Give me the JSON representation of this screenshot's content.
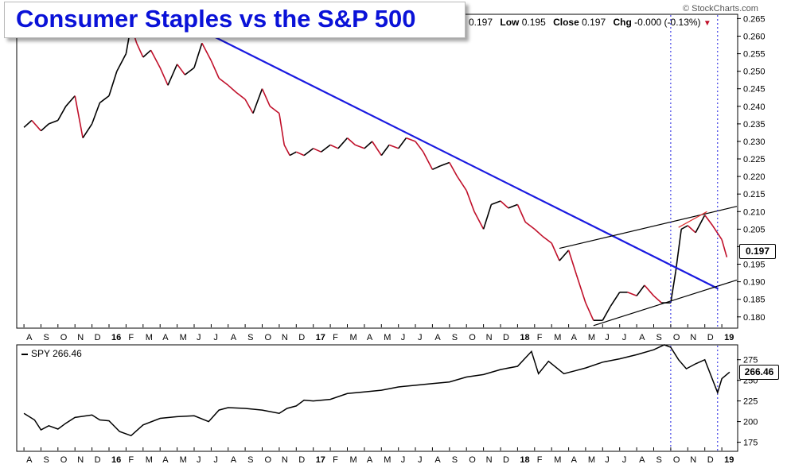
{
  "title": "Consumer Staples vs the S&P 500",
  "watermark": "© StockCharts.com",
  "header": {
    "open_value": "0.197",
    "low_label": "Low",
    "low_value": "0.195",
    "close_label": "Close",
    "close_value": "0.197",
    "chg_label": "Chg",
    "chg_value": "-0.000 (-0.13%)"
  },
  "chart_data": [
    {
      "type": "line",
      "panel": "ratio",
      "title": "Consumer Staples vs the S&P 500",
      "last_value_label": "0.197",
      "ylim": [
        0.177,
        0.266
      ],
      "y_ticks": [
        "0.265",
        "0.260",
        "0.255",
        "0.250",
        "0.245",
        "0.240",
        "0.235",
        "0.230",
        "0.225",
        "0.220",
        "0.215",
        "0.210",
        "0.205",
        "0.200",
        "0.195",
        "0.190",
        "0.185",
        "0.180"
      ],
      "x_tick_labels": [
        "A",
        "S",
        "O",
        "N",
        "D",
        "16",
        "F",
        "M",
        "A",
        "M",
        "J",
        "J",
        "A",
        "S",
        "O",
        "N",
        "D",
        "17",
        "F",
        "M",
        "A",
        "M",
        "J",
        "J",
        "A",
        "S",
        "O",
        "N",
        "D",
        "18",
        "F",
        "M",
        "A",
        "M",
        "J",
        "J",
        "A",
        "S",
        "O",
        "N",
        "D",
        "19"
      ],
      "x_range": [
        "2015-08",
        "2019-01"
      ],
      "line_colors": {
        "up": "#000000",
        "down": "#c0102a"
      },
      "series": [
        {
          "x": [
            "2015-08-01",
            "2015-08-15",
            "2015-09-01",
            "2015-09-15",
            "2015-10-01",
            "2015-10-15",
            "2015-11-01",
            "2015-11-15",
            "2015-12-01",
            "2015-12-15",
            "2016-01-01",
            "2016-01-15",
            "2016-02-01",
            "2016-02-10",
            "2016-02-20",
            "2016-03-01",
            "2016-03-15",
            "2016-04-01",
            "2016-04-15",
            "2016-05-01",
            "2016-05-15",
            "2016-06-01",
            "2016-06-15",
            "2016-07-01",
            "2016-07-15",
            "2016-08-01",
            "2016-08-15",
            "2016-09-01",
            "2016-09-15",
            "2016-10-01",
            "2016-10-15",
            "2016-11-01",
            "2016-11-10",
            "2016-11-20",
            "2016-12-01",
            "2016-12-15",
            "2017-01-01",
            "2017-01-15",
            "2017-02-01",
            "2017-02-15",
            "2017-03-01",
            "2017-03-15",
            "2017-04-01",
            "2017-04-15",
            "2017-05-01",
            "2017-05-15",
            "2017-06-01",
            "2017-06-15",
            "2017-07-01",
            "2017-07-15",
            "2017-08-01",
            "2017-08-15",
            "2017-09-01",
            "2017-09-15",
            "2017-10-01",
            "2017-10-15",
            "2017-11-01",
            "2017-11-15",
            "2017-12-01",
            "2017-12-15",
            "2018-01-01",
            "2018-01-15",
            "2018-02-01",
            "2018-02-15",
            "2018-03-01",
            "2018-03-15",
            "2018-04-01",
            "2018-04-15",
            "2018-05-01",
            "2018-05-15",
            "2018-06-01",
            "2018-06-15",
            "2018-07-01",
            "2018-07-15",
            "2018-08-01",
            "2018-08-15",
            "2018-09-01",
            "2018-09-15",
            "2018-10-01",
            "2018-10-10",
            "2018-10-20",
            "2018-11-01",
            "2018-11-15",
            "2018-12-01",
            "2018-12-15",
            "2019-01-01",
            "2019-01-10"
          ],
          "y": [
            0.234,
            0.236,
            0.233,
            0.235,
            0.236,
            0.24,
            0.243,
            0.231,
            0.235,
            0.241,
            0.243,
            0.25,
            0.255,
            0.263,
            0.258,
            0.254,
            0.256,
            0.251,
            0.246,
            0.252,
            0.249,
            0.251,
            0.258,
            0.253,
            0.248,
            0.246,
            0.244,
            0.242,
            0.238,
            0.245,
            0.24,
            0.238,
            0.229,
            0.226,
            0.227,
            0.226,
            0.228,
            0.227,
            0.229,
            0.228,
            0.231,
            0.229,
            0.228,
            0.23,
            0.226,
            0.229,
            0.228,
            0.231,
            0.23,
            0.227,
            0.222,
            0.223,
            0.224,
            0.22,
            0.216,
            0.21,
            0.205,
            0.212,
            0.213,
            0.211,
            0.212,
            0.207,
            0.205,
            0.203,
            0.201,
            0.196,
            0.199,
            0.192,
            0.184,
            0.179,
            0.179,
            0.183,
            0.187,
            0.187,
            0.186,
            0.189,
            0.186,
            0.184,
            0.184,
            0.193,
            0.205,
            0.206,
            0.204,
            0.209,
            0.206,
            0.202,
            0.197
          ]
        }
      ],
      "trendlines": [
        {
          "name": "downtrend",
          "color": "#1a1ae0",
          "points": [
            [
              "2016-05-15",
              0.264
            ],
            [
              "2018-12-25",
              0.188
            ]
          ]
        },
        {
          "name": "channel-upper",
          "color": "#000000",
          "points": [
            [
              "2018-03-15",
              0.1995
            ],
            [
              "2019-01-28",
              0.2115
            ]
          ]
        },
        {
          "name": "channel-lower",
          "color": "#000000",
          "points": [
            [
              "2018-05-15",
              0.1775
            ],
            [
              "2019-01-28",
              0.1905
            ]
          ]
        },
        {
          "name": "top-segment",
          "color": "#e03030",
          "points": [
            [
              "2018-10-15",
              0.2055
            ],
            [
              "2018-12-05",
              0.21
            ]
          ]
        }
      ],
      "vertical_markers": [
        "2018-10-01",
        "2018-12-24"
      ],
      "grid": false,
      "legend": "none"
    },
    {
      "type": "line",
      "panel": "spy",
      "legend_label": "SPY 266.46",
      "last_value_label": "266.46",
      "ylim": [
        165,
        292
      ],
      "y_ticks": [
        "275",
        "250",
        "225",
        "200",
        "175"
      ],
      "x_tick_labels": [
        "A",
        "S",
        "O",
        "N",
        "D",
        "16",
        "F",
        "M",
        "A",
        "M",
        "J",
        "J",
        "A",
        "S",
        "O",
        "N",
        "D",
        "17",
        "F",
        "M",
        "A",
        "M",
        "J",
        "J",
        "A",
        "S",
        "O",
        "N",
        "D",
        "18",
        "F",
        "M",
        "A",
        "M",
        "J",
        "J",
        "A",
        "S",
        "O",
        "N",
        "D",
        "19"
      ],
      "series": [
        {
          "name": "SPY",
          "x": [
            "2015-08-01",
            "2015-08-20",
            "2015-09-01",
            "2015-09-15",
            "2015-10-01",
            "2015-10-15",
            "2015-11-01",
            "2015-12-01",
            "2015-12-15",
            "2016-01-01",
            "2016-01-20",
            "2016-02-10",
            "2016-03-01",
            "2016-04-01",
            "2016-05-01",
            "2016-06-01",
            "2016-06-27",
            "2016-07-15",
            "2016-08-01",
            "2016-09-01",
            "2016-10-01",
            "2016-11-01",
            "2016-11-15",
            "2016-12-01",
            "2016-12-15",
            "2017-01-01",
            "2017-02-01",
            "2017-03-01",
            "2017-04-01",
            "2017-05-01",
            "2017-06-01",
            "2017-07-01",
            "2017-08-01",
            "2017-09-01",
            "2017-10-01",
            "2017-11-01",
            "2017-12-01",
            "2018-01-01",
            "2018-01-26",
            "2018-02-08",
            "2018-02-26",
            "2018-03-23",
            "2018-04-15",
            "2018-05-01",
            "2018-06-01",
            "2018-07-01",
            "2018-08-01",
            "2018-09-01",
            "2018-09-20",
            "2018-10-01",
            "2018-10-15",
            "2018-10-29",
            "2018-11-15",
            "2018-12-01",
            "2018-12-24",
            "2019-01-01",
            "2019-01-15"
          ],
          "y": [
            210,
            202,
            190,
            195,
            191,
            198,
            205,
            208,
            202,
            201,
            188,
            183,
            196,
            204,
            206,
            207,
            200,
            214,
            217,
            216,
            214,
            210,
            216,
            219,
            226,
            225,
            227,
            234,
            236,
            238,
            242,
            244,
            246,
            248,
            254,
            257,
            263,
            267,
            285,
            258,
            273,
            258,
            262,
            265,
            272,
            276,
            281,
            287,
            293,
            290,
            275,
            264,
            270,
            275,
            235,
            252,
            260
          ]
        }
      ],
      "vertical_markers": [
        "2018-10-01",
        "2018-12-24"
      ],
      "grid": false
    }
  ]
}
